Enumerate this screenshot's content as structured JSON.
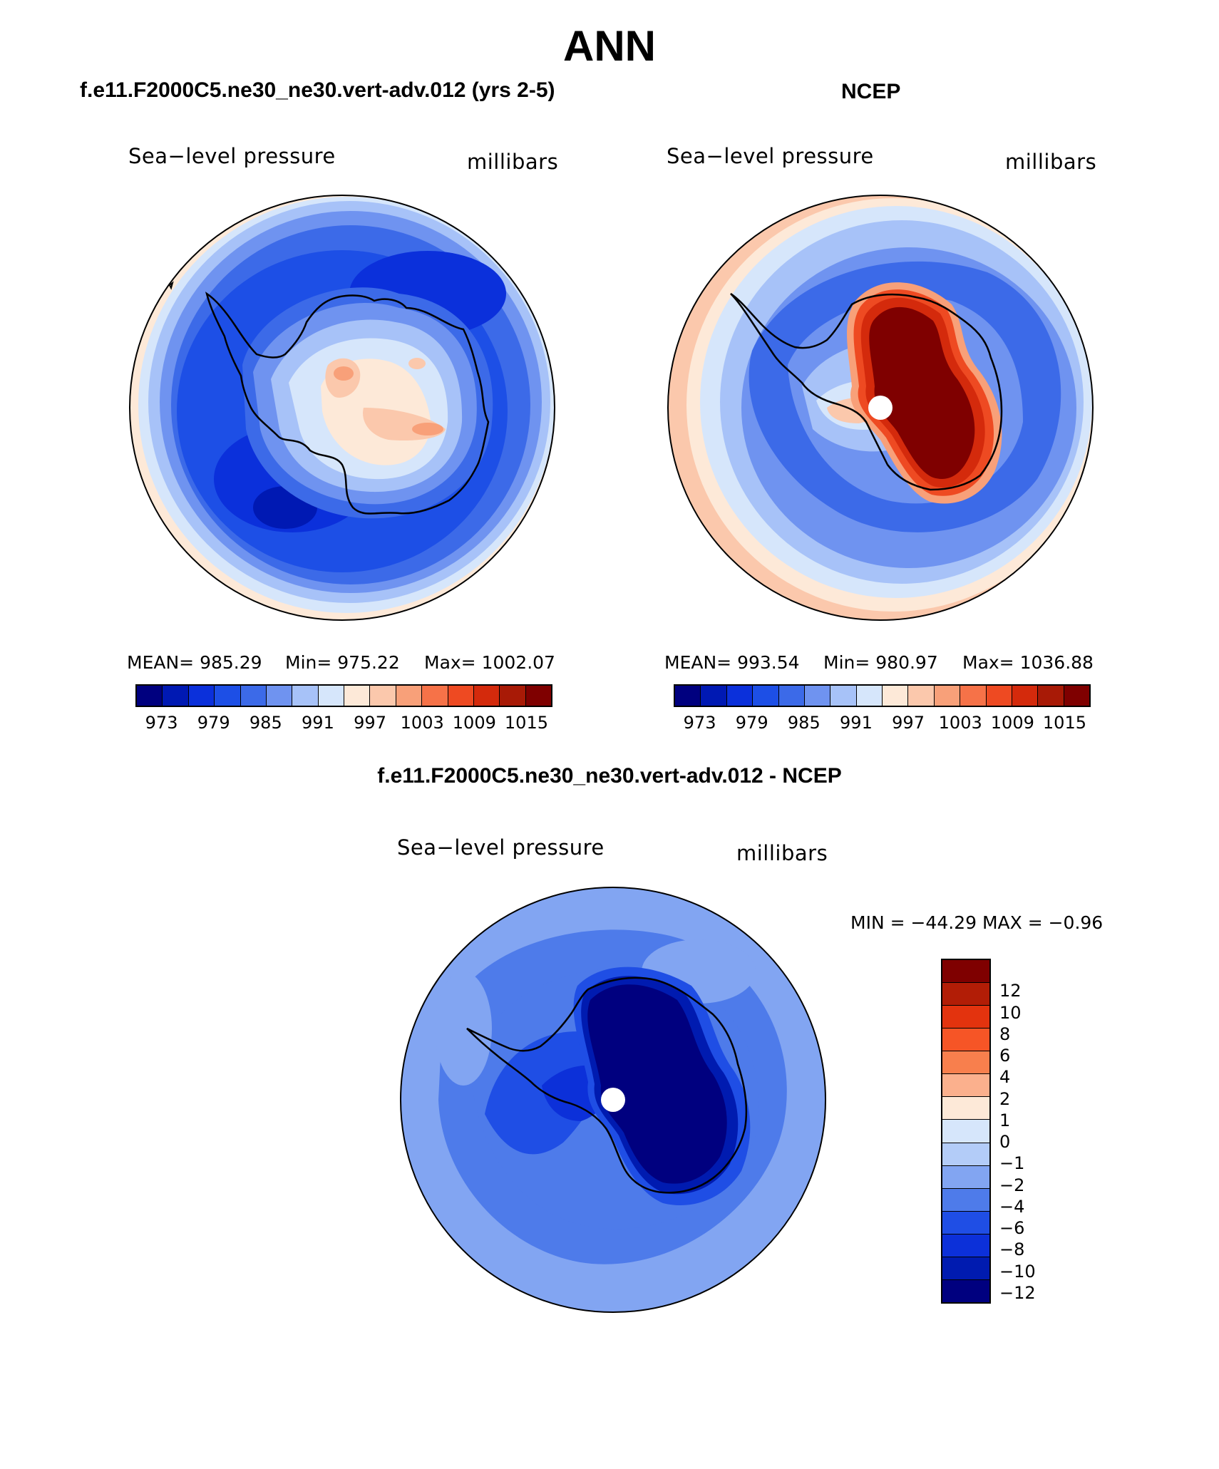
{
  "title": "ANN",
  "panels": {
    "model": {
      "title": "f.e11.F2000C5.ne30_ne30.vert-adv.012 (yrs 2-5)",
      "variable": "Sea−level pressure",
      "units": "millibars",
      "stats": {
        "mean": "MEAN=  985.29",
        "min": "Min=  975.22",
        "max": "Max=  1002.07"
      }
    },
    "obs": {
      "title": "NCEP",
      "variable": "Sea−level pressure",
      "units": "millibars",
      "stats": {
        "mean": "MEAN=  993.54",
        "min": "Min=  980.97",
        "max": "Max=  1036.88"
      }
    },
    "diff": {
      "title": "f.e11.F2000C5.ne30_ne30.vert-adv.012 - NCEP",
      "variable": "Sea−level pressure",
      "units": "millibars",
      "stats": "MIN  =  −44.29  MAX  =   −0.96"
    }
  },
  "colorbar_abs": {
    "colors": [
      "#00007f",
      "#0019b3",
      "#0b30db",
      "#1d4fe6",
      "#3c6ae8",
      "#6f93f0",
      "#a7c2f8",
      "#d6e6fb",
      "#fde9d8",
      "#fbc8ac",
      "#f8a079",
      "#f67248",
      "#ee4a22",
      "#d42a0c",
      "#a81a06",
      "#7f0000"
    ],
    "labels": [
      "973",
      "979",
      "985",
      "991",
      "997",
      "1003",
      "1009",
      "1015"
    ]
  },
  "colorbar_diff": {
    "colors": [
      "#7f0000",
      "#b21d06",
      "#e3330e",
      "#f65526",
      "#f87f4d",
      "#fbb08d",
      "#fde9d8",
      "#d6e6fb",
      "#b3ccf8",
      "#82a5f2",
      "#4e7bea",
      "#1f4ee5",
      "#0c30d9",
      "#001bb0",
      "#00007f"
    ],
    "labels": [
      "12",
      "10",
      "8",
      "6",
      "4",
      "2",
      "1",
      "0",
      "−1",
      "−2",
      "−4",
      "−6",
      "−8",
      "−10",
      "−12"
    ]
  }
}
